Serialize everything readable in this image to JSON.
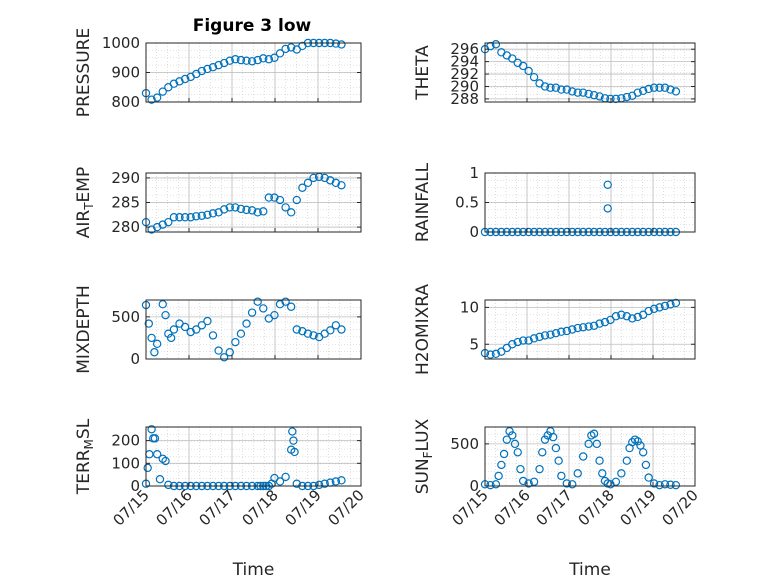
{
  "figure": {
    "title": "Figure 3 low",
    "xlabel": "Time",
    "marker_color": "#0072BD",
    "grid_color": "#c8c8c8"
  },
  "chart_data": [
    {
      "id": "pressure",
      "type": "scatter",
      "ylabel": "PRESSURE",
      "ylim": [
        800,
        1000
      ],
      "yticks": [
        "800",
        "900",
        "1000"
      ],
      "xlim": [
        0,
        3.85
      ],
      "grid": true,
      "x": [
        0,
        0.1,
        0.2,
        0.3,
        0.4,
        0.5,
        0.6,
        0.7,
        0.8,
        0.9,
        1.0,
        1.1,
        1.2,
        1.3,
        1.4,
        1.5,
        1.6,
        1.7,
        1.8,
        1.9,
        2.0,
        2.1,
        2.2,
        2.3,
        2.4,
        2.5,
        2.6,
        2.7,
        2.8,
        2.9,
        3.0,
        3.1,
        3.2,
        3.3,
        3.4,
        3.5
      ],
      "y": [
        830,
        808,
        815,
        835,
        850,
        862,
        870,
        878,
        885,
        895,
        905,
        912,
        918,
        925,
        932,
        940,
        945,
        942,
        940,
        938,
        942,
        948,
        945,
        950,
        965,
        980,
        985,
        978,
        990,
        1000,
        1005,
        1003,
        1002,
        1000,
        998,
        995
      ]
    },
    {
      "id": "theta",
      "type": "scatter",
      "ylabel": "THETA",
      "ylim": [
        287.5,
        297
      ],
      "yticks": [
        "288",
        "290",
        "292",
        "294",
        "296"
      ],
      "xlim": [
        0,
        3.85
      ],
      "grid": true,
      "x": [
        0,
        0.1,
        0.2,
        0.3,
        0.4,
        0.5,
        0.6,
        0.7,
        0.8,
        0.9,
        1.0,
        1.1,
        1.2,
        1.3,
        1.4,
        1.5,
        1.6,
        1.7,
        1.8,
        1.9,
        2.0,
        2.1,
        2.2,
        2.3,
        2.4,
        2.5,
        2.6,
        2.7,
        2.8,
        2.9,
        3.0,
        3.1,
        3.2,
        3.3,
        3.4,
        3.5
      ],
      "y": [
        296,
        296.5,
        296.8,
        295.5,
        295,
        294.5,
        293.8,
        293.3,
        292.5,
        291.5,
        290.5,
        290,
        289.8,
        289.8,
        289.5,
        289.5,
        289.2,
        289,
        289,
        288.8,
        288.6,
        288.4,
        288.1,
        288,
        288,
        288.1,
        288.3,
        288.5,
        289,
        289.3,
        289.6,
        289.8,
        289.8,
        289.8,
        289.5,
        289.2
      ]
    },
    {
      "id": "air_temp",
      "type": "scatter",
      "ylabel": "AIR",
      "ylabel_sub": "T",
      "ylabel_tail": "EMP",
      "ylim": [
        279,
        291
      ],
      "yticks": [
        "280",
        "285",
        "290"
      ],
      "xlim": [
        0,
        3.85
      ],
      "grid": true,
      "x": [
        0,
        0.1,
        0.2,
        0.3,
        0.4,
        0.5,
        0.6,
        0.7,
        0.8,
        0.9,
        1.0,
        1.1,
        1.2,
        1.3,
        1.4,
        1.5,
        1.6,
        1.7,
        1.8,
        1.9,
        2.0,
        2.1,
        2.2,
        2.3,
        2.4,
        2.5,
        2.6,
        2.7,
        2.8,
        2.9,
        3.0,
        3.1,
        3.2,
        3.3,
        3.4,
        3.5
      ],
      "y": [
        281,
        279.5,
        280,
        280.5,
        281,
        282,
        282,
        282,
        282,
        282.2,
        282.3,
        282.5,
        282.8,
        283,
        283.6,
        284,
        284,
        283.7,
        283.5,
        283.4,
        283,
        283.2,
        286,
        286,
        285.5,
        284,
        283,
        285.5,
        288,
        289,
        290,
        290.2,
        290,
        289.5,
        289,
        288.5
      ]
    },
    {
      "id": "rainfall",
      "type": "scatter",
      "ylabel": "RAINFALL",
      "ylim": [
        0,
        1
      ],
      "yticks": [
        "0",
        "0.5",
        "1"
      ],
      "xlim": [
        0,
        3.85
      ],
      "grid": true,
      "x": [
        0,
        0.1,
        0.2,
        0.3,
        0.4,
        0.5,
        0.6,
        0.7,
        0.8,
        0.9,
        1.0,
        1.1,
        1.2,
        1.3,
        1.4,
        1.5,
        1.6,
        1.7,
        1.8,
        1.9,
        2.0,
        2.1,
        2.2,
        2.3,
        2.4,
        2.5,
        2.6,
        2.7,
        2.8,
        2.9,
        3.0,
        3.1,
        3.2,
        3.3,
        3.4,
        3.5,
        2.25,
        2.25
      ],
      "y": [
        0,
        0,
        0,
        0,
        0,
        0,
        0,
        0,
        0,
        0,
        0,
        0,
        0,
        0,
        0,
        0,
        0,
        0,
        0,
        0,
        0,
        0,
        0,
        0,
        0,
        0,
        0,
        0,
        0,
        0,
        0,
        0,
        0,
        0,
        0,
        0,
        0.8,
        0.4
      ]
    },
    {
      "id": "mixdepth",
      "type": "scatter",
      "ylabel": "MIXDEPTH",
      "ylim": [
        0,
        700
      ],
      "yticks": [
        "0",
        "500"
      ],
      "xlim": [
        0,
        3.85
      ],
      "grid": true,
      "x": [
        0,
        0.05,
        0.1,
        0.15,
        0.2,
        0.3,
        0.35,
        0.4,
        0.45,
        0.5,
        0.6,
        0.7,
        0.8,
        0.9,
        1.0,
        1.1,
        1.2,
        1.3,
        1.4,
        1.5,
        1.6,
        1.7,
        1.8,
        1.9,
        2.0,
        2.1,
        2.2,
        2.3,
        2.4,
        2.5,
        2.6,
        2.7,
        2.8,
        2.9,
        3.0,
        3.1,
        3.2,
        3.3,
        3.4,
        3.5
      ],
      "y": [
        640,
        420,
        250,
        80,
        180,
        650,
        520,
        300,
        250,
        350,
        420,
        380,
        320,
        350,
        400,
        450,
        280,
        100,
        20,
        80,
        200,
        300,
        420,
        550,
        680,
        600,
        480,
        520,
        650,
        680,
        620,
        350,
        330,
        300,
        280,
        260,
        300,
        340,
        400,
        350
      ]
    },
    {
      "id": "h2omixra",
      "type": "scatter",
      "ylabel": "H2OMIXRA",
      "ylim": [
        3,
        11
      ],
      "yticks": [
        "5",
        "10"
      ],
      "xlim": [
        0,
        3.85
      ],
      "grid": true,
      "x": [
        0,
        0.1,
        0.2,
        0.3,
        0.4,
        0.5,
        0.6,
        0.7,
        0.8,
        0.9,
        1.0,
        1.1,
        1.2,
        1.3,
        1.4,
        1.5,
        1.6,
        1.7,
        1.8,
        1.9,
        2.0,
        2.1,
        2.2,
        2.3,
        2.4,
        2.5,
        2.6,
        2.7,
        2.8,
        2.9,
        3.0,
        3.1,
        3.2,
        3.3,
        3.4,
        3.5
      ],
      "y": [
        3.8,
        3.6,
        3.7,
        4.0,
        4.5,
        5.0,
        5.3,
        5.5,
        5.5,
        5.8,
        6.0,
        6.2,
        6.3,
        6.5,
        6.7,
        6.8,
        7.0,
        7.2,
        7.3,
        7.4,
        7.5,
        7.8,
        8.0,
        8.3,
        8.8,
        9.0,
        8.8,
        8.5,
        8.7,
        9.0,
        9.5,
        9.8,
        10.0,
        10.2,
        10.4,
        10.6
      ]
    },
    {
      "id": "terr_msl",
      "type": "scatter",
      "ylabel": "TERR",
      "ylabel_sub": "M",
      "ylabel_tail": "SL",
      "ylim": [
        0,
        260
      ],
      "yticks": [
        "0",
        "100",
        "200"
      ],
      "xlim": [
        0,
        3.85
      ],
      "grid": true,
      "x": [
        0,
        0.03,
        0.06,
        0.1,
        0.13,
        0.16,
        0.2,
        0.25,
        0.3,
        0.35,
        0.4,
        0.5,
        0.6,
        0.7,
        0.8,
        0.9,
        1.0,
        1.1,
        1.2,
        1.3,
        1.4,
        1.5,
        1.6,
        1.7,
        1.8,
        1.9,
        2.0,
        2.05,
        2.1,
        2.15,
        2.2,
        2.25,
        2.3,
        2.4,
        2.5,
        2.6,
        2.62,
        2.64,
        2.66,
        2.7,
        2.8,
        2.9,
        3.0,
        3.1,
        3.2,
        3.3,
        3.4,
        3.5
      ],
      "y": [
        10,
        80,
        140,
        250,
        210,
        210,
        140,
        30,
        120,
        110,
        5,
        0,
        0,
        0,
        0,
        0,
        0,
        0,
        0,
        0,
        0,
        0,
        0,
        0,
        0,
        0,
        0,
        0,
        0,
        0,
        0,
        10,
        35,
        20,
        40,
        160,
        240,
        200,
        150,
        10,
        0,
        0,
        0,
        5,
        10,
        15,
        20,
        25
      ]
    },
    {
      "id": "sunflux",
      "type": "scatter",
      "ylabel": "SUN",
      "ylabel_sub": "F",
      "ylabel_tail": "LUX",
      "ylim": [
        0,
        700
      ],
      "yticks": [
        "0",
        "500"
      ],
      "xlim": [
        0,
        3.85
      ],
      "grid": true,
      "x": [
        0,
        0.1,
        0.2,
        0.25,
        0.3,
        0.35,
        0.4,
        0.45,
        0.5,
        0.55,
        0.6,
        0.65,
        0.7,
        0.8,
        0.9,
        1.0,
        1.05,
        1.1,
        1.15,
        1.2,
        1.25,
        1.3,
        1.35,
        1.4,
        1.5,
        1.6,
        1.7,
        1.8,
        1.9,
        1.95,
        2.0,
        2.05,
        2.1,
        2.15,
        2.2,
        2.25,
        2.3,
        2.4,
        2.5,
        2.6,
        2.65,
        2.7,
        2.75,
        2.8,
        2.85,
        2.9,
        2.95,
        3.0,
        3.1,
        3.2,
        3.3,
        3.4,
        3.5
      ],
      "y": [
        20,
        10,
        20,
        120,
        250,
        380,
        550,
        650,
        600,
        500,
        400,
        200,
        60,
        30,
        50,
        200,
        400,
        550,
        600,
        650,
        580,
        450,
        300,
        120,
        30,
        20,
        150,
        350,
        500,
        600,
        620,
        500,
        300,
        150,
        60,
        30,
        20,
        50,
        150,
        300,
        450,
        520,
        550,
        530,
        480,
        400,
        250,
        100,
        30,
        10,
        20,
        15,
        10
      ]
    }
  ],
  "xticks": [
    "07/15",
    "07/16",
    "07/17",
    "07/18",
    "07/19",
    "07/20"
  ]
}
